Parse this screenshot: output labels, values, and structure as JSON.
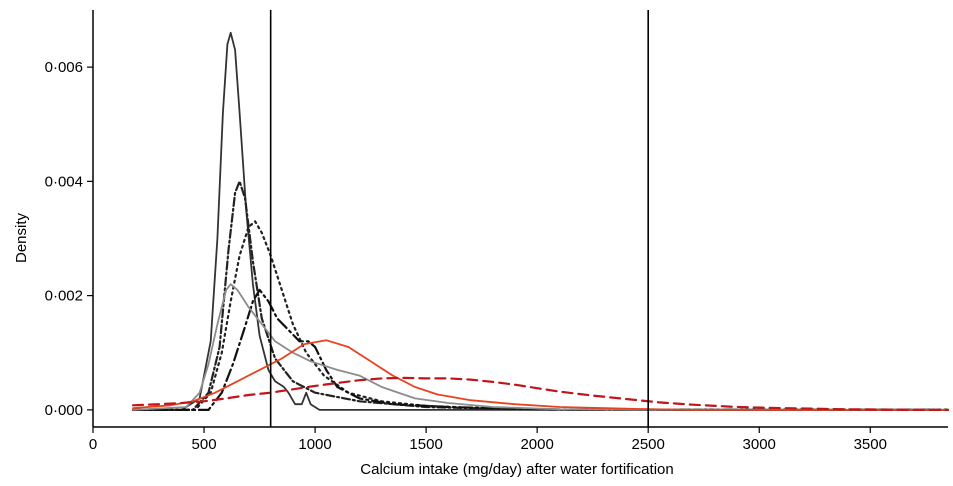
{
  "chart_data": {
    "type": "line",
    "title": "",
    "xlabel": "Calcium intake (mg/day) after water fortification",
    "ylabel": "Density",
    "xlim": [
      0,
      3850
    ],
    "ylim": [
      -0.0003,
      0.007
    ],
    "grid": false,
    "legend": "none",
    "x_ticks": [
      0,
      500,
      1000,
      1500,
      2000,
      2500,
      3000,
      3500
    ],
    "x_tick_labels": [
      "0",
      "500",
      "1000",
      "1500",
      "2000",
      "2500",
      "3000",
      "3500"
    ],
    "y_ticks": [
      0.0,
      0.002,
      0.004,
      0.006
    ],
    "y_tick_labels": [
      "0·000",
      "0·002",
      "0·004",
      "0·006"
    ],
    "reference_lines_x": [
      800,
      2500
    ],
    "series": [
      {
        "style": "solid",
        "color": "#333333",
        "points": [
          [
            180,
            0
          ],
          [
            400,
            0
          ],
          [
            480,
            0.0002
          ],
          [
            530,
            0.0012
          ],
          [
            560,
            0.003
          ],
          [
            585,
            0.0052
          ],
          [
            605,
            0.0064
          ],
          [
            620,
            0.0066
          ],
          [
            640,
            0.0063
          ],
          [
            660,
            0.0052
          ],
          [
            690,
            0.0035
          ],
          [
            720,
            0.0022
          ],
          [
            750,
            0.0013
          ],
          [
            790,
            0.0007
          ],
          [
            820,
            0.0005
          ],
          [
            860,
            0.0004
          ],
          [
            880,
            0.0003
          ],
          [
            910,
            0.0001
          ],
          [
            940,
            0.0001
          ],
          [
            960,
            0.0003
          ],
          [
            980,
            0.0001
          ],
          [
            1020,
            0
          ],
          [
            3850,
            0
          ]
        ]
      },
      {
        "style": "dash-dot",
        "color": "#222222",
        "points": [
          [
            180,
            0
          ],
          [
            450,
            0
          ],
          [
            520,
            0.0003
          ],
          [
            570,
            0.0011
          ],
          [
            610,
            0.0028
          ],
          [
            640,
            0.0038
          ],
          [
            660,
            0.004
          ],
          [
            685,
            0.0037
          ],
          [
            720,
            0.0026
          ],
          [
            760,
            0.0016
          ],
          [
            820,
            0.0009
          ],
          [
            900,
            0.0005
          ],
          [
            1000,
            0.0003
          ],
          [
            1200,
            0.00015
          ],
          [
            1500,
            5e-05
          ],
          [
            1800,
            2e-05
          ],
          [
            2200,
            0
          ],
          [
            3850,
            0
          ]
        ]
      },
      {
        "style": "dotted",
        "color": "#222222",
        "points": [
          [
            180,
            0
          ],
          [
            460,
            0
          ],
          [
            530,
            0.0003
          ],
          [
            580,
            0.001
          ],
          [
            620,
            0.0019
          ],
          [
            660,
            0.0027
          ],
          [
            700,
            0.0032
          ],
          [
            730,
            0.0033
          ],
          [
            760,
            0.0031
          ],
          [
            800,
            0.0027
          ],
          [
            850,
            0.0021
          ],
          [
            900,
            0.0015
          ],
          [
            960,
            0.001
          ],
          [
            1040,
            0.0006
          ],
          [
            1150,
            0.0003
          ],
          [
            1300,
            0.00015
          ],
          [
            1500,
            7e-05
          ],
          [
            1800,
            2e-05
          ],
          [
            2200,
            0
          ],
          [
            3850,
            0
          ]
        ]
      },
      {
        "style": "long-dash-dot",
        "color": "#111111",
        "points": [
          [
            180,
            0
          ],
          [
            520,
            0
          ],
          [
            580,
            0.0003
          ],
          [
            630,
            0.0008
          ],
          [
            680,
            0.0014
          ],
          [
            720,
            0.0019
          ],
          [
            750,
            0.0021
          ],
          [
            790,
            0.0019
          ],
          [
            830,
            0.0016
          ],
          [
            880,
            0.0014
          ],
          [
            930,
            0.0012
          ],
          [
            970,
            0.0012
          ],
          [
            1000,
            0.0011
          ],
          [
            1050,
            0.0007
          ],
          [
            1100,
            0.0004
          ],
          [
            1200,
            0.0002
          ],
          [
            1350,
            0.0001
          ],
          [
            1600,
            5e-05
          ],
          [
            2000,
            1e-05
          ],
          [
            2500,
            0
          ],
          [
            3850,
            0
          ]
        ]
      },
      {
        "style": "solid",
        "color": "#8c8c8c",
        "points": [
          [
            180,
            0
          ],
          [
            420,
            5e-05
          ],
          [
            480,
            0.0003
          ],
          [
            520,
            0.0008
          ],
          [
            560,
            0.0015
          ],
          [
            600,
            0.0021
          ],
          [
            620,
            0.0022
          ],
          [
            650,
            0.0021
          ],
          [
            700,
            0.0018
          ],
          [
            760,
            0.0015
          ],
          [
            820,
            0.0012
          ],
          [
            900,
            0.001
          ],
          [
            980,
            0.00085
          ],
          [
            1100,
            0.0007
          ],
          [
            1200,
            0.0006
          ],
          [
            1300,
            0.0004
          ],
          [
            1450,
            0.0002
          ],
          [
            1600,
            0.00012
          ],
          [
            1800,
            5e-05
          ],
          [
            2100,
            1e-05
          ],
          [
            2500,
            0
          ],
          [
            3850,
            0
          ]
        ]
      },
      {
        "style": "solid",
        "color": "#e8431f",
        "points": [
          [
            180,
            3e-05
          ],
          [
            350,
            8e-05
          ],
          [
            450,
            0.00015
          ],
          [
            550,
            0.0003
          ],
          [
            650,
            0.0005
          ],
          [
            750,
            0.0007
          ],
          [
            850,
            0.0009
          ],
          [
            950,
            0.00115
          ],
          [
            1050,
            0.00122
          ],
          [
            1150,
            0.0011
          ],
          [
            1250,
            0.00085
          ],
          [
            1350,
            0.0006
          ],
          [
            1450,
            0.0004
          ],
          [
            1550,
            0.00027
          ],
          [
            1700,
            0.00017
          ],
          [
            1900,
            0.0001
          ],
          [
            2100,
            5e-05
          ],
          [
            2400,
            2e-05
          ],
          [
            2700,
            0
          ],
          [
            3850,
            0
          ]
        ]
      },
      {
        "style": "dashed",
        "color": "#c0151a",
        "points": [
          [
            180,
            8e-05
          ],
          [
            300,
            0.0001
          ],
          [
            400,
            0.00012
          ],
          [
            500,
            0.00015
          ],
          [
            600,
            0.0002
          ],
          [
            700,
            0.00026
          ],
          [
            800,
            0.0003
          ],
          [
            900,
            0.00036
          ],
          [
            1000,
            0.00042
          ],
          [
            1100,
            0.00047
          ],
          [
            1200,
            0.00052
          ],
          [
            1300,
            0.00055
          ],
          [
            1400,
            0.00056
          ],
          [
            1500,
            0.00055
          ],
          [
            1600,
            0.00055
          ],
          [
            1700,
            0.00053
          ],
          [
            1800,
            0.00049
          ],
          [
            1900,
            0.00044
          ],
          [
            2000,
            0.00038
          ],
          [
            2100,
            0.00032
          ],
          [
            2250,
            0.00025
          ],
          [
            2400,
            0.00019
          ],
          [
            2550,
            0.00013
          ],
          [
            2700,
            9e-05
          ],
          [
            2900,
            5e-05
          ],
          [
            3100,
            3e-05
          ],
          [
            3400,
            1e-05
          ],
          [
            3850,
            0
          ]
        ]
      }
    ]
  }
}
